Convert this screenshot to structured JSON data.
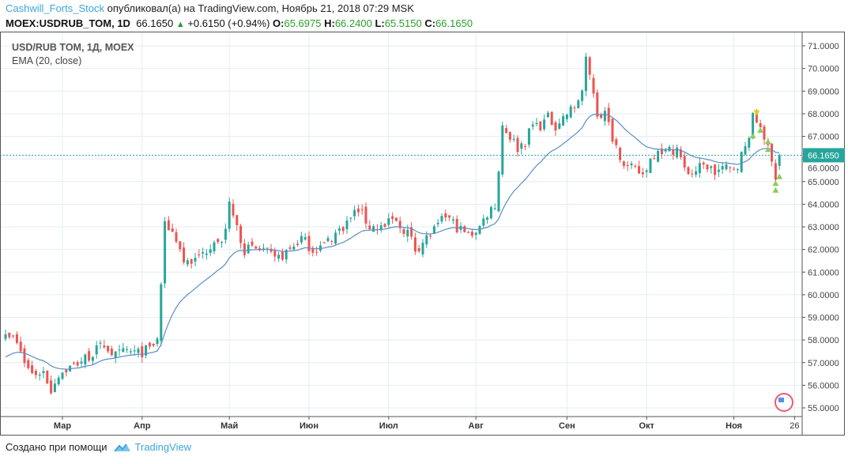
{
  "header": {
    "user": "Cashwill_Forts_Stock",
    "published": "опубликовал(а) на TradingView.com, Ноябрь 21, 2018 07:29 MSK",
    "symbol": "MOEX:USDRUB_TOM, 1D",
    "last": "66.1650",
    "change": "+0.6150 (+0.94%)",
    "o_label": "O:",
    "o": "65.6975",
    "h_label": "H:",
    "h": "66.2400",
    "l_label": "L:",
    "l": "65.5150",
    "c_label": "C:",
    "c": "66.1650"
  },
  "legend": {
    "title": "USD/RUB TOM, 1Д, MOEX",
    "indicator": "EMA (20, close)"
  },
  "footer": {
    "created": "Создано при помощи",
    "brand": "TradingView"
  },
  "colors": {
    "up": "#26a69a",
    "down": "#ef5350",
    "ema": "#5b8ec4",
    "grid": "#e3edf5",
    "signal_up": "#8ccc5a",
    "signal_down": "#f0c419"
  },
  "chart_data": {
    "type": "candlestick",
    "title": "USD/RUB TOM, 1Д, MOEX",
    "indicator": "EMA (20, close)",
    "ylim": [
      54.6,
      71.6
    ],
    "y_ticks": [
      "71.0000",
      "70.0000",
      "69.0000",
      "68.0000",
      "67.0000",
      "66.0000",
      "65.0000",
      "64.0000",
      "63.0000",
      "62.0000",
      "61.0000",
      "60.0000",
      "59.0000",
      "58.0000",
      "57.0000",
      "56.0000",
      "55.0000"
    ],
    "x_ticks": [
      {
        "label": "Мар",
        "bar": 15
      },
      {
        "label": "Апр",
        "bar": 36
      },
      {
        "label": "Май",
        "bar": 59
      },
      {
        "label": "Июн",
        "bar": 80
      },
      {
        "label": "Июл",
        "bar": 101
      },
      {
        "label": "Авг",
        "bar": 124
      },
      {
        "label": "Сен",
        "bar": 148
      },
      {
        "label": "Окт",
        "bar": 169
      },
      {
        "label": "Ноя",
        "bar": 192
      },
      {
        "label": "26",
        "bar": 208
      }
    ],
    "last_price": "66.1650",
    "close_path": [
      [
        0,
        58.5
      ],
      [
        3,
        57.8
      ],
      [
        5,
        57.0
      ],
      [
        7,
        56.5
      ],
      [
        10,
        56.6
      ],
      [
        12,
        55.8
      ],
      [
        14,
        56.5
      ],
      [
        17,
        56.8
      ],
      [
        19,
        57.0
      ],
      [
        22,
        57.3
      ],
      [
        26,
        57.8
      ],
      [
        29,
        57.3
      ],
      [
        32,
        57.5
      ],
      [
        35,
        57.4
      ],
      [
        38,
        57.6
      ],
      [
        40,
        58.0
      ],
      [
        41,
        60.5
      ],
      [
        42,
        63.0
      ],
      [
        43,
        63.0
      ],
      [
        45,
        62.5
      ],
      [
        47,
        61.5
      ],
      [
        50,
        61.5
      ],
      [
        53,
        62.0
      ],
      [
        55,
        62.5
      ],
      [
        57,
        62.2
      ],
      [
        59,
        63.9
      ],
      [
        61,
        63.0
      ],
      [
        63,
        62.0
      ],
      [
        65,
        62.0
      ],
      [
        68,
        62.0
      ],
      [
        71,
        61.5
      ],
      [
        75,
        62.0
      ],
      [
        78,
        62.5
      ],
      [
        81,
        62.0
      ],
      [
        84,
        62.2
      ],
      [
        87,
        62.7
      ],
      [
        90,
        63.2
      ],
      [
        93,
        63.8
      ],
      [
        96,
        63.0
      ],
      [
        100,
        63.0
      ],
      [
        102,
        63.3
      ],
      [
        104,
        63.0
      ],
      [
        106,
        62.8
      ],
      [
        108,
        62.0
      ],
      [
        111,
        62.5
      ],
      [
        114,
        63.0
      ],
      [
        116,
        63.5
      ],
      [
        119,
        63.0
      ],
      [
        122,
        62.6
      ],
      [
        125,
        63.0
      ],
      [
        127,
        63.6
      ],
      [
        129,
        64.0
      ],
      [
        130,
        65.5
      ],
      [
        131,
        67.5
      ],
      [
        133,
        67.0
      ],
      [
        135,
        66.5
      ],
      [
        137,
        66.8
      ],
      [
        139,
        67.5
      ],
      [
        141,
        67.5
      ],
      [
        143,
        67.8
      ],
      [
        145,
        67.5
      ],
      [
        148,
        68.0
      ],
      [
        150,
        68.3
      ],
      [
        152,
        69.0
      ],
      [
        153,
        70.3
      ],
      [
        155,
        69.0
      ],
      [
        156,
        68.0
      ],
      [
        158,
        68.0
      ],
      [
        160,
        67.0
      ],
      [
        162,
        66.2
      ],
      [
        164,
        65.6
      ],
      [
        166,
        65.5
      ],
      [
        168,
        65.3
      ],
      [
        170,
        66.0
      ],
      [
        172,
        66.5
      ],
      [
        174,
        66.3
      ],
      [
        177,
        66.5
      ],
      [
        179,
        65.5
      ],
      [
        181,
        65.4
      ],
      [
        183,
        65.6
      ],
      [
        185,
        65.7
      ],
      [
        187,
        65.4
      ],
      [
        189,
        65.6
      ],
      [
        191,
        65.5
      ],
      [
        193,
        65.8
      ],
      [
        195,
        66.5
      ],
      [
        197,
        67.8
      ],
      [
        199,
        67.5
      ],
      [
        200,
        67.0
      ],
      [
        202,
        65.8
      ],
      [
        203,
        65.3
      ],
      [
        204,
        66.165
      ]
    ],
    "signals": [
      {
        "bar": 198,
        "price": 68.05,
        "type": "down"
      },
      {
        "bar": 197,
        "price": 67.05,
        "type": "up"
      },
      {
        "bar": 199,
        "price": 67.3,
        "type": "up"
      },
      {
        "bar": 201,
        "price": 66.8,
        "type": "up"
      },
      {
        "bar": 201,
        "price": 66.45,
        "type": "up"
      },
      {
        "bar": 203,
        "price": 64.95,
        "type": "up"
      },
      {
        "bar": 203,
        "price": 64.65,
        "type": "up"
      },
      {
        "bar": 204,
        "price": 65.25,
        "type": "up"
      }
    ]
  }
}
